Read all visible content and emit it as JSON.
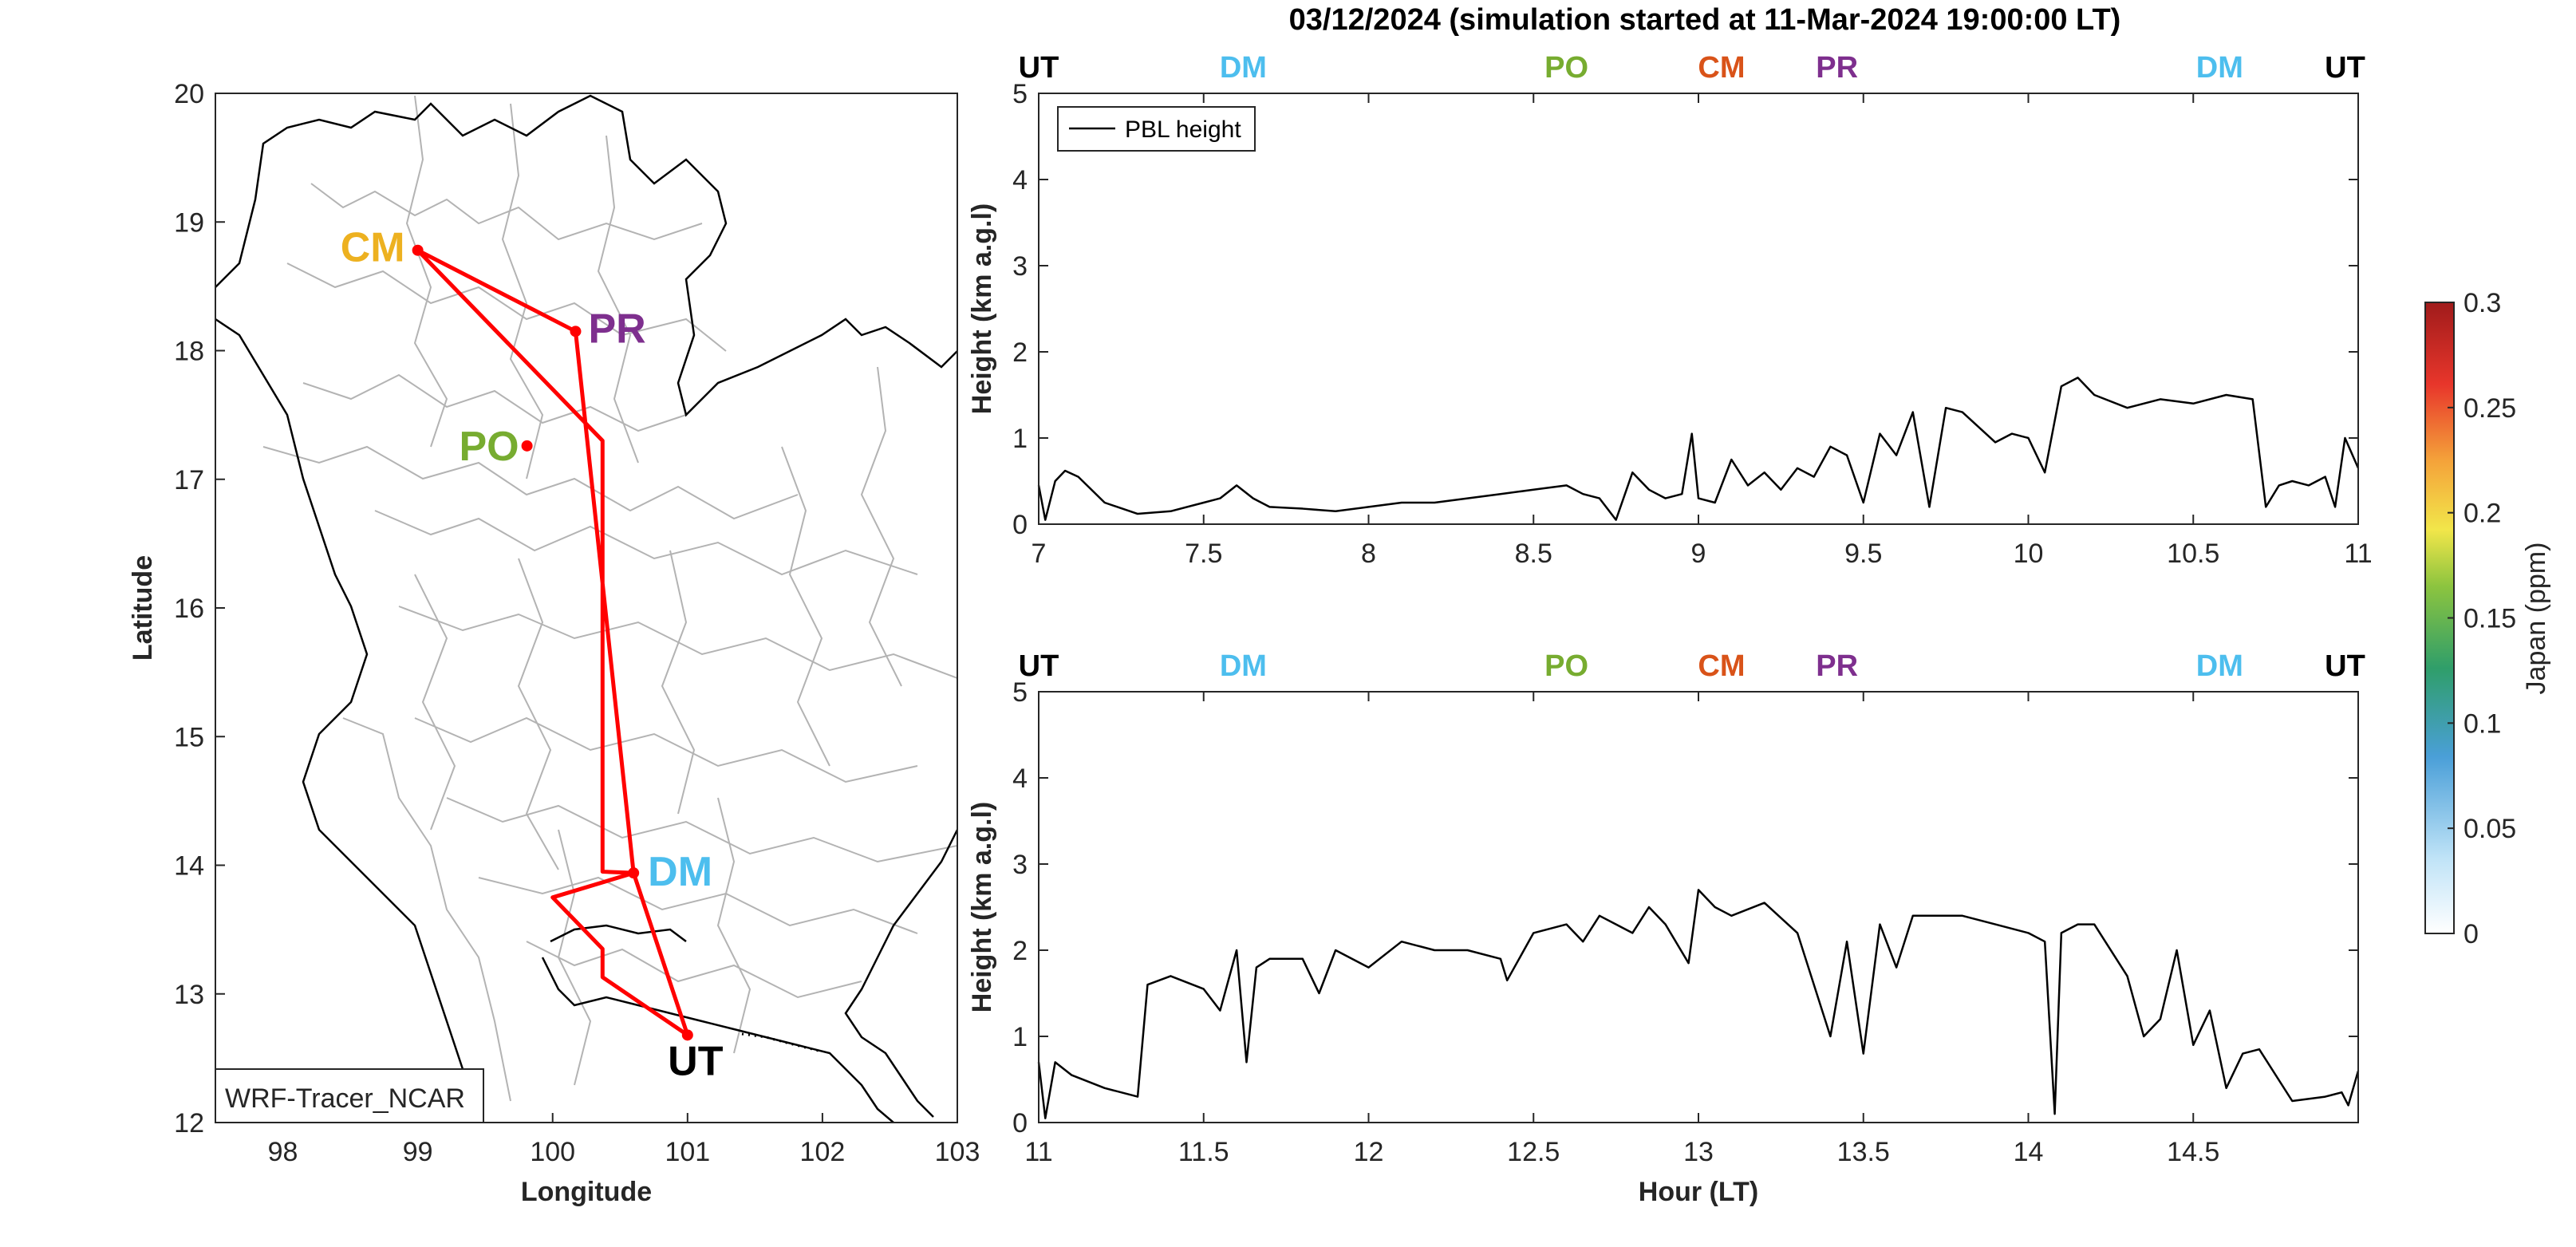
{
  "title": "03/12/2024 (simulation started at 11-Mar-2024 19:00:00 LT)",
  "colors": {
    "UT": "#000000",
    "DM": "#4DBEEE",
    "PO": "#77AC30",
    "CM": "#EDB120",
    "CM_top": "#D95319",
    "PR": "#7E2F8E",
    "route": "#FF0000",
    "pbl": "#000000",
    "border": "#000000",
    "provinces": "#b3b3b3"
  },
  "map": {
    "xlabel": "Longitude",
    "ylabel": "Latitude",
    "xticks": [
      "98",
      "99",
      "100",
      "101",
      "102",
      "103"
    ],
    "yticks": [
      "12",
      "13",
      "14",
      "15",
      "16",
      "17",
      "18",
      "19",
      "20"
    ],
    "xlim": [
      97.5,
      103
    ],
    "ylim": [
      12,
      20
    ],
    "model_label": "WRF-Tracer_NCAR",
    "stations": [
      {
        "name": "CM",
        "lon": 99.0,
        "lat": 18.78
      },
      {
        "name": "PR",
        "lon": 100.17,
        "lat": 18.15
      },
      {
        "name": "PO",
        "lon": 99.81,
        "lat": 17.26
      },
      {
        "name": "DM",
        "lon": 100.6,
        "lat": 13.94
      },
      {
        "name": "UT",
        "lon": 101.0,
        "lat": 12.68
      }
    ],
    "route": [
      [
        101.0,
        12.68
      ],
      [
        100.37,
        13.13
      ],
      [
        100.37,
        13.35
      ],
      [
        100.0,
        13.75
      ],
      [
        100.6,
        13.94
      ],
      [
        100.17,
        18.15
      ],
      [
        99.0,
        18.78
      ],
      [
        100.37,
        17.3
      ],
      [
        100.37,
        13.95
      ],
      [
        100.6,
        13.94
      ],
      [
        101.0,
        12.68
      ]
    ]
  },
  "colorbar": {
    "label": "Japan (ppm)",
    "ticks": [
      "0",
      "0.05",
      "0.1",
      "0.15",
      "0.2",
      "0.25",
      "0.3"
    ],
    "range": [
      0,
      0.3
    ]
  },
  "chart_data": [
    {
      "type": "line",
      "legend": "PBL height",
      "ylabel": "Height (km a.g.l)",
      "xlabel": "",
      "xlim": [
        7,
        11
      ],
      "ylim": [
        0,
        5
      ],
      "xticks": [
        "7",
        "7.5",
        "8",
        "8.5",
        "9",
        "9.5",
        "10",
        "10.5",
        "11"
      ],
      "yticks": [
        "0",
        "1",
        "2",
        "3",
        "4",
        "5"
      ],
      "top_markers": [
        {
          "name": "UT",
          "x": 7.0,
          "color_key": "UT"
        },
        {
          "name": "DM",
          "x": 7.62,
          "color_key": "DM"
        },
        {
          "name": "PO",
          "x": 8.6,
          "color_key": "PO"
        },
        {
          "name": "CM",
          "x": 9.07,
          "color_key": "CM_top"
        },
        {
          "name": "PR",
          "x": 9.42,
          "color_key": "PR"
        },
        {
          "name": "DM",
          "x": 10.58,
          "color_key": "DM"
        },
        {
          "name": "UT",
          "x": 10.96,
          "color_key": "UT"
        }
      ],
      "series": [
        {
          "x": [
            7.0,
            7.02,
            7.05,
            7.08,
            7.12,
            7.2,
            7.3,
            7.4,
            7.5,
            7.55,
            7.6,
            7.65,
            7.7,
            7.8,
            7.9,
            8.0,
            8.1,
            8.2,
            8.3,
            8.4,
            8.5,
            8.6,
            8.65,
            8.7,
            8.75,
            8.8,
            8.85,
            8.9,
            8.95,
            8.98,
            9.0,
            9.05,
            9.1,
            9.15,
            9.2,
            9.25,
            9.3,
            9.35,
            9.4,
            9.45,
            9.5,
            9.55,
            9.6,
            9.65,
            9.7,
            9.75,
            9.8,
            9.9,
            9.95,
            10.0,
            10.05,
            10.1,
            10.15,
            10.2,
            10.3,
            10.4,
            10.5,
            10.6,
            10.68,
            10.72,
            10.76,
            10.8,
            10.85,
            10.9,
            10.93,
            10.96,
            11.0
          ],
          "y": [
            0.45,
            0.05,
            0.5,
            0.62,
            0.55,
            0.25,
            0.12,
            0.15,
            0.25,
            0.3,
            0.45,
            0.3,
            0.2,
            0.18,
            0.15,
            0.2,
            0.25,
            0.25,
            0.3,
            0.35,
            0.4,
            0.45,
            0.35,
            0.3,
            0.05,
            0.6,
            0.4,
            0.3,
            0.35,
            1.05,
            0.3,
            0.25,
            0.75,
            0.45,
            0.6,
            0.4,
            0.65,
            0.55,
            0.9,
            0.8,
            0.25,
            1.05,
            0.8,
            1.3,
            0.2,
            1.35,
            1.3,
            0.95,
            1.05,
            1.0,
            0.6,
            1.6,
            1.7,
            1.5,
            1.35,
            1.45,
            1.4,
            1.5,
            1.45,
            0.2,
            0.45,
            0.5,
            0.45,
            0.55,
            0.2,
            1.0,
            0.65
          ]
        }
      ]
    },
    {
      "type": "line",
      "legend": "",
      "ylabel": "Height (km a.g.l)",
      "xlabel": "Hour (LT)",
      "xlim": [
        11,
        15
      ],
      "ylim": [
        0,
        5
      ],
      "xticks": [
        "11",
        "11.5",
        "12",
        "12.5",
        "13",
        "13.5",
        "14",
        "14.5"
      ],
      "yticks": [
        "0",
        "1",
        "2",
        "3",
        "4",
        "5"
      ],
      "top_markers": [
        {
          "name": "UT",
          "x": 11.0,
          "color_key": "UT"
        },
        {
          "name": "DM",
          "x": 11.62,
          "color_key": "DM"
        },
        {
          "name": "PO",
          "x": 12.6,
          "color_key": "PO"
        },
        {
          "name": "CM",
          "x": 13.07,
          "color_key": "CM_top"
        },
        {
          "name": "PR",
          "x": 13.42,
          "color_key": "PR"
        },
        {
          "name": "DM",
          "x": 14.58,
          "color_key": "DM"
        },
        {
          "name": "UT",
          "x": 14.96,
          "color_key": "UT"
        }
      ],
      "series": [
        {
          "x": [
            11.0,
            11.02,
            11.05,
            11.1,
            11.2,
            11.3,
            11.33,
            11.4,
            11.5,
            11.55,
            11.6,
            11.63,
            11.66,
            11.7,
            11.8,
            11.85,
            11.9,
            12.0,
            12.1,
            12.2,
            12.3,
            12.4,
            12.42,
            12.5,
            12.6,
            12.65,
            12.7,
            12.8,
            12.85,
            12.9,
            12.97,
            13.0,
            13.05,
            13.1,
            13.2,
            13.3,
            13.4,
            13.45,
            13.5,
            13.55,
            13.6,
            13.65,
            13.7,
            13.8,
            13.9,
            14.0,
            14.05,
            14.08,
            14.1,
            14.15,
            14.2,
            14.3,
            14.35,
            14.4,
            14.45,
            14.5,
            14.55,
            14.6,
            14.65,
            14.7,
            14.8,
            14.9,
            14.95,
            14.97,
            15.0
          ],
          "y": [
            0.7,
            0.05,
            0.7,
            0.55,
            0.4,
            0.3,
            1.6,
            1.7,
            1.55,
            1.3,
            2.0,
            0.7,
            1.8,
            1.9,
            1.9,
            1.5,
            2.0,
            1.8,
            2.1,
            2.0,
            2.0,
            1.9,
            1.65,
            2.2,
            2.3,
            2.1,
            2.4,
            2.2,
            2.5,
            2.3,
            1.85,
            2.7,
            2.5,
            2.4,
            2.55,
            2.2,
            1.0,
            2.1,
            0.8,
            2.3,
            1.8,
            2.4,
            2.4,
            2.4,
            2.3,
            2.2,
            2.1,
            0.1,
            2.2,
            2.3,
            2.3,
            1.7,
            1.0,
            1.2,
            2.0,
            0.9,
            1.3,
            0.4,
            0.8,
            0.85,
            0.25,
            0.3,
            0.35,
            0.2,
            0.6
          ]
        }
      ]
    }
  ]
}
